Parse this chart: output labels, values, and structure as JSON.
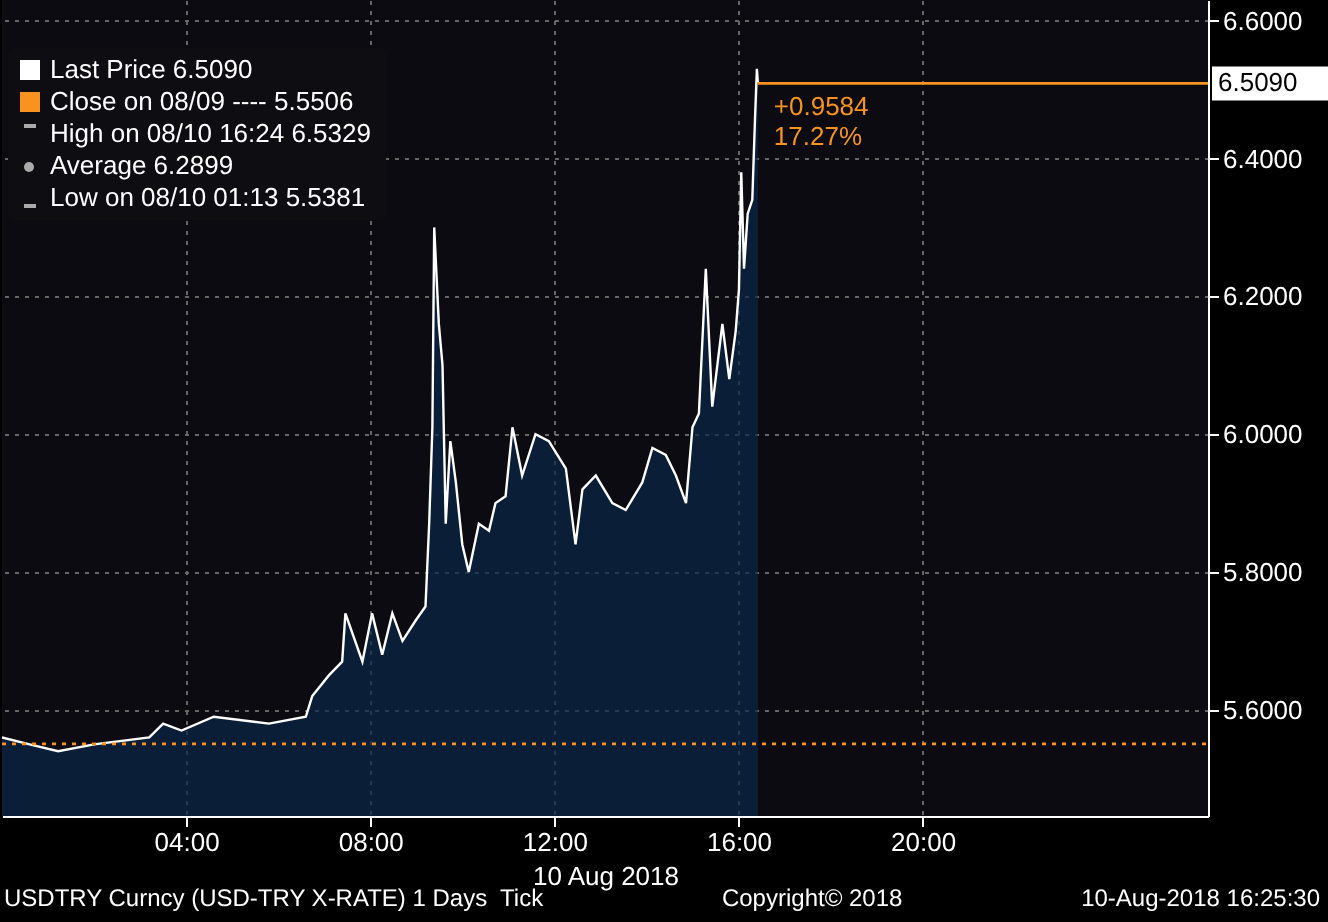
{
  "chart_data": {
    "type": "area",
    "xlabel": "10 Aug 2018",
    "x": [
      0,
      0.6,
      1.22,
      2.0,
      3.2,
      3.5,
      3.9,
      4.6,
      5.8,
      6.6,
      6.74,
      7.1,
      7.39,
      7.46,
      7.83,
      8.04,
      8.26,
      8.48,
      8.7,
      8.99,
      9.2,
      9.28,
      9.35,
      9.39,
      9.49,
      9.57,
      9.64,
      9.74,
      9.86,
      10.0,
      10.14,
      10.36,
      10.58,
      10.72,
      10.94,
      11.09,
      11.3,
      11.59,
      11.88,
      12.25,
      12.46,
      12.61,
      12.9,
      13.26,
      13.55,
      13.91,
      14.13,
      14.42,
      14.64,
      14.86,
      15.0,
      15.14,
      15.29,
      15.43,
      15.65,
      15.8,
      15.94,
      16.01,
      16.06,
      16.12,
      16.2,
      16.3,
      16.36,
      16.4,
      16.42
    ],
    "series": [
      {
        "color": "#0c2748",
        "values": [
          5.56,
          5.55,
          5.54,
          5.55,
          5.56,
          5.58,
          5.57,
          5.59,
          5.58,
          5.59,
          5.62,
          5.65,
          5.67,
          5.74,
          5.67,
          5.74,
          5.68,
          5.74,
          5.7,
          5.73,
          5.75,
          5.87,
          6.01,
          6.3,
          6.16,
          6.1,
          5.87,
          5.99,
          5.93,
          5.84,
          5.8,
          5.87,
          5.86,
          5.9,
          5.91,
          6.01,
          5.94,
          6.0,
          5.99,
          5.95,
          5.84,
          5.92,
          5.94,
          5.9,
          5.89,
          5.93,
          5.98,
          5.97,
          5.94,
          5.9,
          6.01,
          6.03,
          6.24,
          6.04,
          6.16,
          6.08,
          6.15,
          6.21,
          6.38,
          6.24,
          6.32,
          6.34,
          6.46,
          6.53,
          6.51
        ]
      }
    ],
    "xlim": [
      0,
      26.2
    ],
    "xticks": [
      {
        "value": 4,
        "label": "04:00"
      },
      {
        "value": 8,
        "label": "08:00"
      },
      {
        "value": 12,
        "label": "12:00"
      },
      {
        "value": 16,
        "label": "16:00"
      },
      {
        "value": 20,
        "label": "20:00"
      }
    ],
    "ylim": [
      5.446,
      6.63
    ],
    "yticks": [
      {
        "value": 5.6,
        "label": "5.6000"
      },
      {
        "value": 5.8,
        "label": "5.8000"
      },
      {
        "value": 6.0,
        "label": "6.0000"
      },
      {
        "value": 6.2,
        "label": "6.2000"
      },
      {
        "value": 6.4,
        "label": "6.4000"
      },
      {
        "value": 6.6,
        "label": "6.6000"
      }
    ],
    "grid": true,
    "ref_lines": [
      {
        "axis": "y",
        "value": 5.5506,
        "color": "#f7931e",
        "line_style": "dotted"
      },
      {
        "axis": "y",
        "value": 6.509,
        "label": "6.5090",
        "color": "#f7931e",
        "line_style": "solid"
      }
    ],
    "annotations": [
      "Last Price 6.5090",
      "Close on 08/09 ---- 5.5506",
      "High on 08/10 16:24 6.5329",
      "Average 6.2899",
      "Low on 08/10 01:13 5.5381",
      "USDTRY Curncy (USD-TRY X-RATE) 1 Days  Tick",
      "Copyright© 2018",
      "10-Aug-2018 16:25:30",
      {
        "text": "+0.9584",
        "x": 16.42,
        "y": 6.509
      },
      {
        "text": "17.27%",
        "x": 16.42,
        "y": 6.509
      }
    ]
  }
}
